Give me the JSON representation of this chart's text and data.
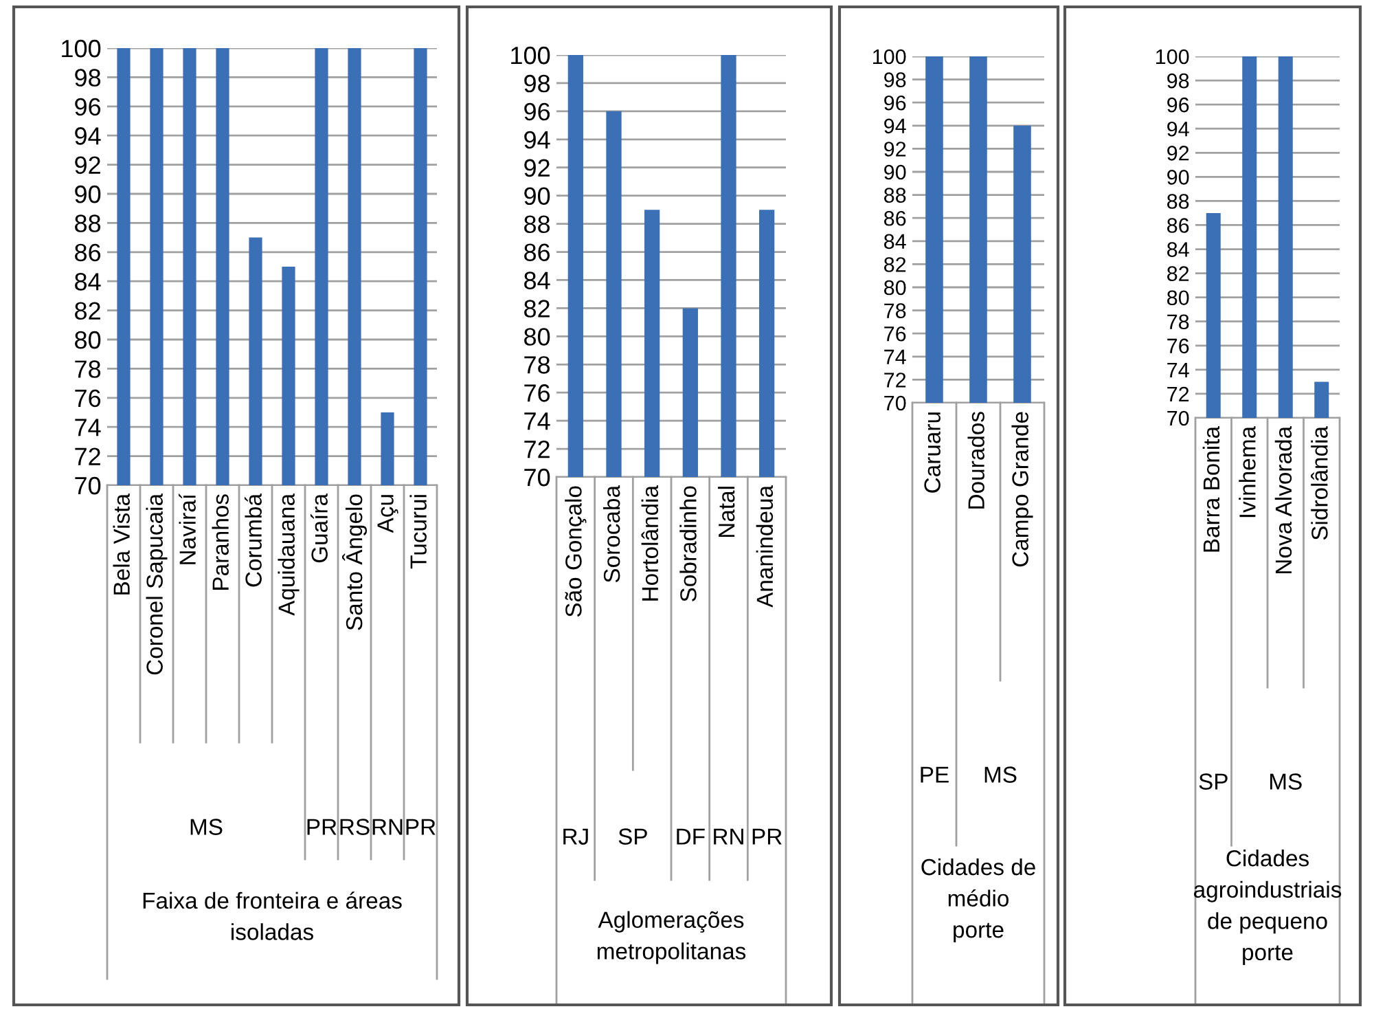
{
  "chart_data": [
    {
      "type": "bar",
      "categories": [
        "Bela Vista",
        "Coronel Sapucaia",
        "Naviraí",
        "Paranhos",
        "Corumbá",
        "Aquidauana",
        "Guaíra",
        "Santo Ângelo",
        "Açu",
        "Tucurui"
      ],
      "values": [
        100,
        100,
        100,
        100,
        87,
        85,
        100,
        100,
        75,
        100
      ],
      "color": "#3b70b6",
      "ylim": [
        70,
        100
      ],
      "yticks": [
        70,
        72,
        74,
        76,
        78,
        80,
        82,
        84,
        86,
        88,
        90,
        92,
        94,
        96,
        98,
        100
      ],
      "grid": "y",
      "xlabel": "Faixa de fronteira e áreas\nisoladas",
      "annotations": [
        "MS",
        "PR",
        "RS",
        "RN",
        "PR"
      ]
    },
    {
      "type": "bar",
      "categories": [
        "São Gonçalo",
        "Sorocaba",
        "Hortolândia",
        "Sobradinho",
        "Natal",
        "Ananindeua"
      ],
      "values": [
        100,
        96,
        89,
        82,
        100,
        89
      ],
      "color": "#3b70b6",
      "ylim": [
        70,
        100
      ],
      "yticks": [
        70,
        72,
        74,
        76,
        78,
        80,
        82,
        84,
        86,
        88,
        90,
        92,
        94,
        96,
        98,
        100
      ],
      "grid": "y",
      "xlabel": "Aglomerações\nmetropolitanas",
      "annotations": [
        "RJ",
        "SP",
        "DF",
        "RN",
        "PR"
      ]
    },
    {
      "type": "bar",
      "categories": [
        "Caruaru",
        "Dourados",
        "Campo Grande"
      ],
      "values": [
        100,
        100,
        94
      ],
      "color": "#3b70b6",
      "ylim": [
        70,
        100
      ],
      "yticks": [
        70,
        72,
        74,
        76,
        78,
        80,
        82,
        84,
        86,
        88,
        90,
        92,
        94,
        96,
        98,
        100
      ],
      "grid": "y",
      "xlabel": "Cidades de\nmédio\nporte",
      "annotations": [
        "PE",
        "MS"
      ]
    },
    {
      "type": "bar",
      "categories": [
        "Barra Bonita",
        "Ivinhema",
        "Nova Alvorada",
        "Sidrolândia"
      ],
      "values": [
        87,
        100,
        100,
        73
      ],
      "color": "#3b70b6",
      "ylim": [
        70,
        100
      ],
      "yticks": [
        70,
        72,
        74,
        76,
        78,
        80,
        82,
        84,
        86,
        88,
        90,
        92,
        94,
        96,
        98,
        100
      ],
      "grid": "y",
      "xlabel": "Cidades\nagroindustriais\nde pequeno\nporte",
      "annotations": [
        "SP",
        "MS"
      ]
    }
  ]
}
